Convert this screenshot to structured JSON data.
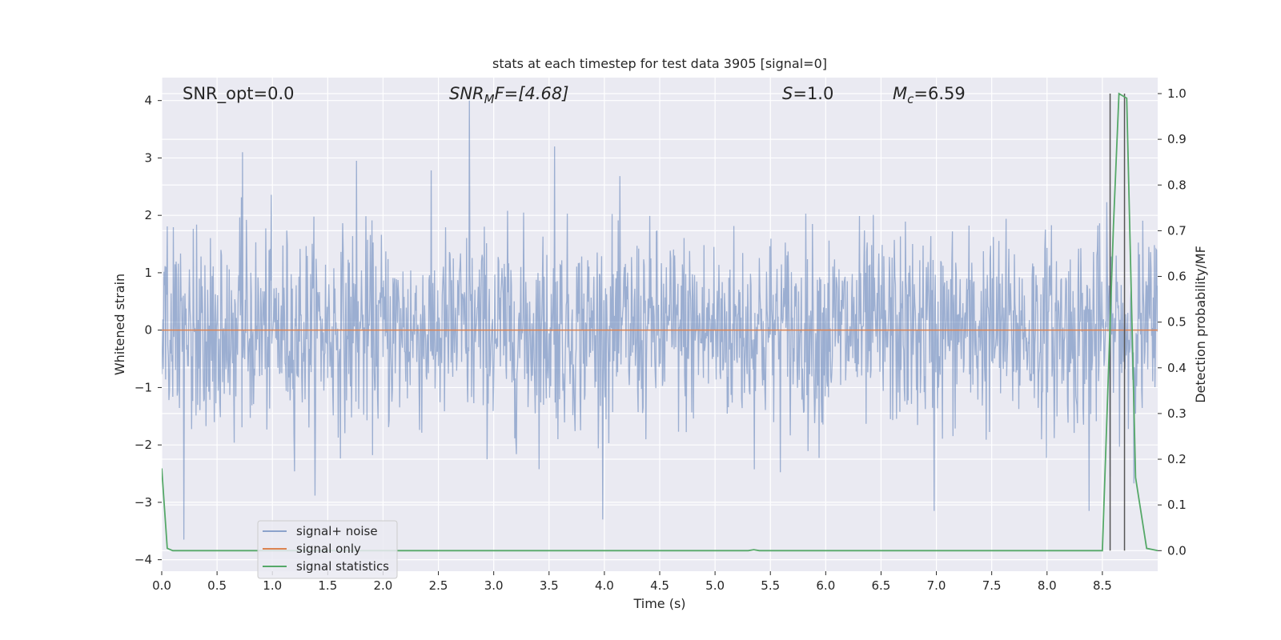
{
  "chart_data": {
    "type": "line",
    "title": "stats at each timestep for test data 3905 [signal=0]",
    "xlabel": "Time (s)",
    "ylabel": "Whitened strain",
    "ylabel_right": "Detection probability/MF",
    "xlim": [
      0.0,
      9.0
    ],
    "ylim": [
      -4.2,
      4.4
    ],
    "ylim_right": [
      -0.045,
      1.035
    ],
    "x_ticks": [
      "0.0",
      "0.5",
      "1.0",
      "1.5",
      "2.0",
      "2.5",
      "3.0",
      "3.5",
      "4.0",
      "4.5",
      "5.0",
      "5.5",
      "6.0",
      "6.5",
      "7.0",
      "7.5",
      "8.0",
      "8.5"
    ],
    "y_ticks_left": [
      "4",
      "3",
      "2",
      "1",
      "0",
      "−1",
      "−2",
      "−3",
      "−4"
    ],
    "y_ticks_right": [
      "1.0",
      "0.9",
      "0.8",
      "0.7",
      "0.6",
      "0.5",
      "0.4",
      "0.3",
      "0.2",
      "0.1",
      "0.0"
    ],
    "grid": true,
    "legend_placement": "lower-left",
    "annotations": {
      "snr_opt": "SNR_opt=0.0",
      "snr_mf_sym": "SNR",
      "snr_mf_sub": "M",
      "snr_mf_rest": "F=[4.68]",
      "s_sym": "S",
      "s_rest": "=1.0",
      "mc_sym": "M",
      "mc_sub": "c",
      "mc_rest": "=6.59"
    },
    "series": [
      {
        "name": "signal+ noise",
        "color": "#4c72b0",
        "axis": "left",
        "description_values": "Gaussian-like whitened noise, sampled densely; envelope roughly between -3.2 and 3.2 with peaks up to about 4.0 near t=2.8s",
        "x_range": [
          0.0,
          9.0
        ],
        "peaks": [
          {
            "x": 0.2,
            "y": -3.65
          },
          {
            "x": 0.73,
            "y": 3.1
          },
          {
            "x": 1.76,
            "y": 2.95
          },
          {
            "x": 2.78,
            "y": 4.0
          },
          {
            "x": 3.55,
            "y": 3.2
          },
          {
            "x": 6.98,
            "y": -3.15
          },
          {
            "x": 8.38,
            "y": -3.15
          }
        ]
      },
      {
        "name": "signal only",
        "color": "#dd8452",
        "axis": "left",
        "x": [
          0.0,
          9.0
        ],
        "y": [
          0.0,
          0.0
        ]
      },
      {
        "name": "signal statistics",
        "color": "#55a868",
        "axis": "right",
        "x": [
          0.0,
          0.05,
          0.1,
          0.2,
          0.5,
          1.0,
          2.0,
          3.0,
          4.0,
          5.0,
          5.3,
          5.35,
          5.4,
          6.0,
          7.0,
          8.0,
          8.45,
          8.5,
          8.6,
          8.65,
          8.72,
          8.8,
          8.9,
          9.0
        ],
        "y": [
          0.18,
          0.005,
          0.0,
          0.0,
          0.0,
          0.0,
          0.0,
          0.0,
          0.0,
          0.0,
          0.0,
          0.002,
          0.0,
          0.0,
          0.0,
          0.0,
          0.0,
          0.0,
          0.71,
          1.0,
          0.99,
          0.16,
          0.005,
          0.0
        ]
      }
    ],
    "vertical_lines": [
      {
        "x": 8.57,
        "color": "#555555"
      },
      {
        "x": 8.7,
        "color": "#555555"
      }
    ]
  }
}
